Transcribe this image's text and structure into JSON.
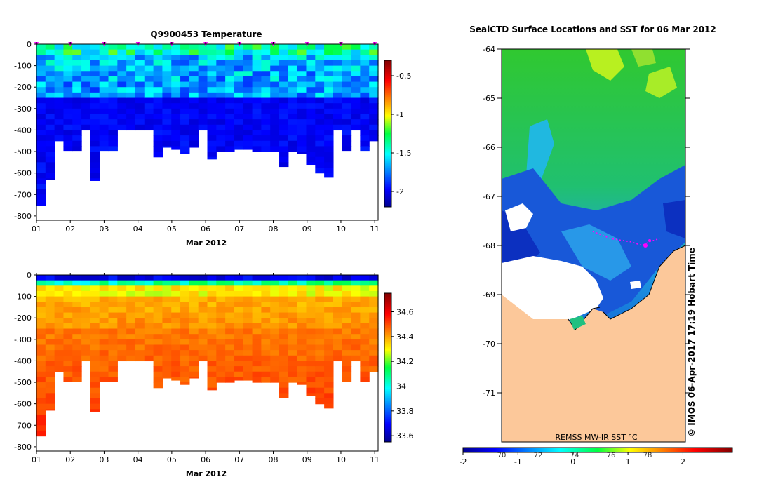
{
  "chart_data": [
    {
      "type": "heatmap",
      "title": "Q9900453  Temperature",
      "xlabel": "Mar 2012",
      "ylabel": "",
      "x_tick_labels": [
        "01",
        "02",
        "03",
        "04",
        "05",
        "06",
        "07",
        "08",
        "09",
        "10",
        "11"
      ],
      "y_ticks": [
        0,
        -100,
        -200,
        -300,
        -400,
        -500,
        -600,
        -700,
        -800
      ],
      "ylim": [
        -820,
        0
      ],
      "xlim": [
        1,
        11.1
      ],
      "colorbar": {
        "ticks": [
          -0.5,
          -1,
          -1.5,
          -2
        ],
        "tick_labels": [
          "-0.5",
          "-1",
          "-1.5",
          "-2"
        ],
        "range": [
          -2.2,
          -0.3
        ]
      },
      "profile_max_depth": [
        -750,
        -630,
        -450,
        -495,
        -495,
        -400,
        -635,
        -495,
        -495,
        -400,
        -400,
        -400,
        -400,
        -525,
        -480,
        -490,
        -510,
        -480,
        -400,
        -535,
        -500,
        -500,
        -490,
        -490,
        -500,
        -500,
        -500,
        -570,
        -500,
        -510,
        -560,
        -600,
        -620,
        -400,
        -495,
        -400,
        -495,
        -450
      ]
    },
    {
      "type": "heatmap",
      "title": "",
      "xlabel": "Mar 2012",
      "ylabel": "",
      "x_tick_labels": [
        "01",
        "02",
        "03",
        "04",
        "05",
        "06",
        "07",
        "08",
        "09",
        "10",
        "11"
      ],
      "y_ticks": [
        0,
        -100,
        -200,
        -300,
        -400,
        -500,
        -600,
        -700,
        -800
      ],
      "ylim": [
        -820,
        0
      ],
      "xlim": [
        1,
        11.1
      ],
      "colorbar": {
        "ticks": [
          34.6,
          34.4,
          34.2,
          34,
          33.8,
          33.6
        ],
        "tick_labels": [
          "34.6",
          "34.4",
          "34.2",
          "34",
          "33.8",
          "33.6"
        ],
        "range": [
          33.55,
          34.75
        ]
      }
    },
    {
      "type": "heatmap",
      "title": "SealCTD Surface Locations and SST for 06 Mar 2012",
      "ylabel": "",
      "y_ticks": [
        -64,
        -65,
        -66,
        -67,
        -68,
        -69,
        -70,
        -71
      ],
      "ylim": [
        -72,
        -64
      ],
      "colorbar_label": "REMSS MW-IR SST °C",
      "colorbar_upper_ticks": [
        "70",
        "72",
        "74",
        "76",
        "78"
      ],
      "colorbar_lower_ticks": [
        "-2",
        "-1",
        "0",
        "1",
        "2"
      ],
      "colorbar_range": [
        -2,
        2.9
      ],
      "side_annotation": "© IMOS 06-Apr-2017 17:19 Hobart Time"
    }
  ]
}
